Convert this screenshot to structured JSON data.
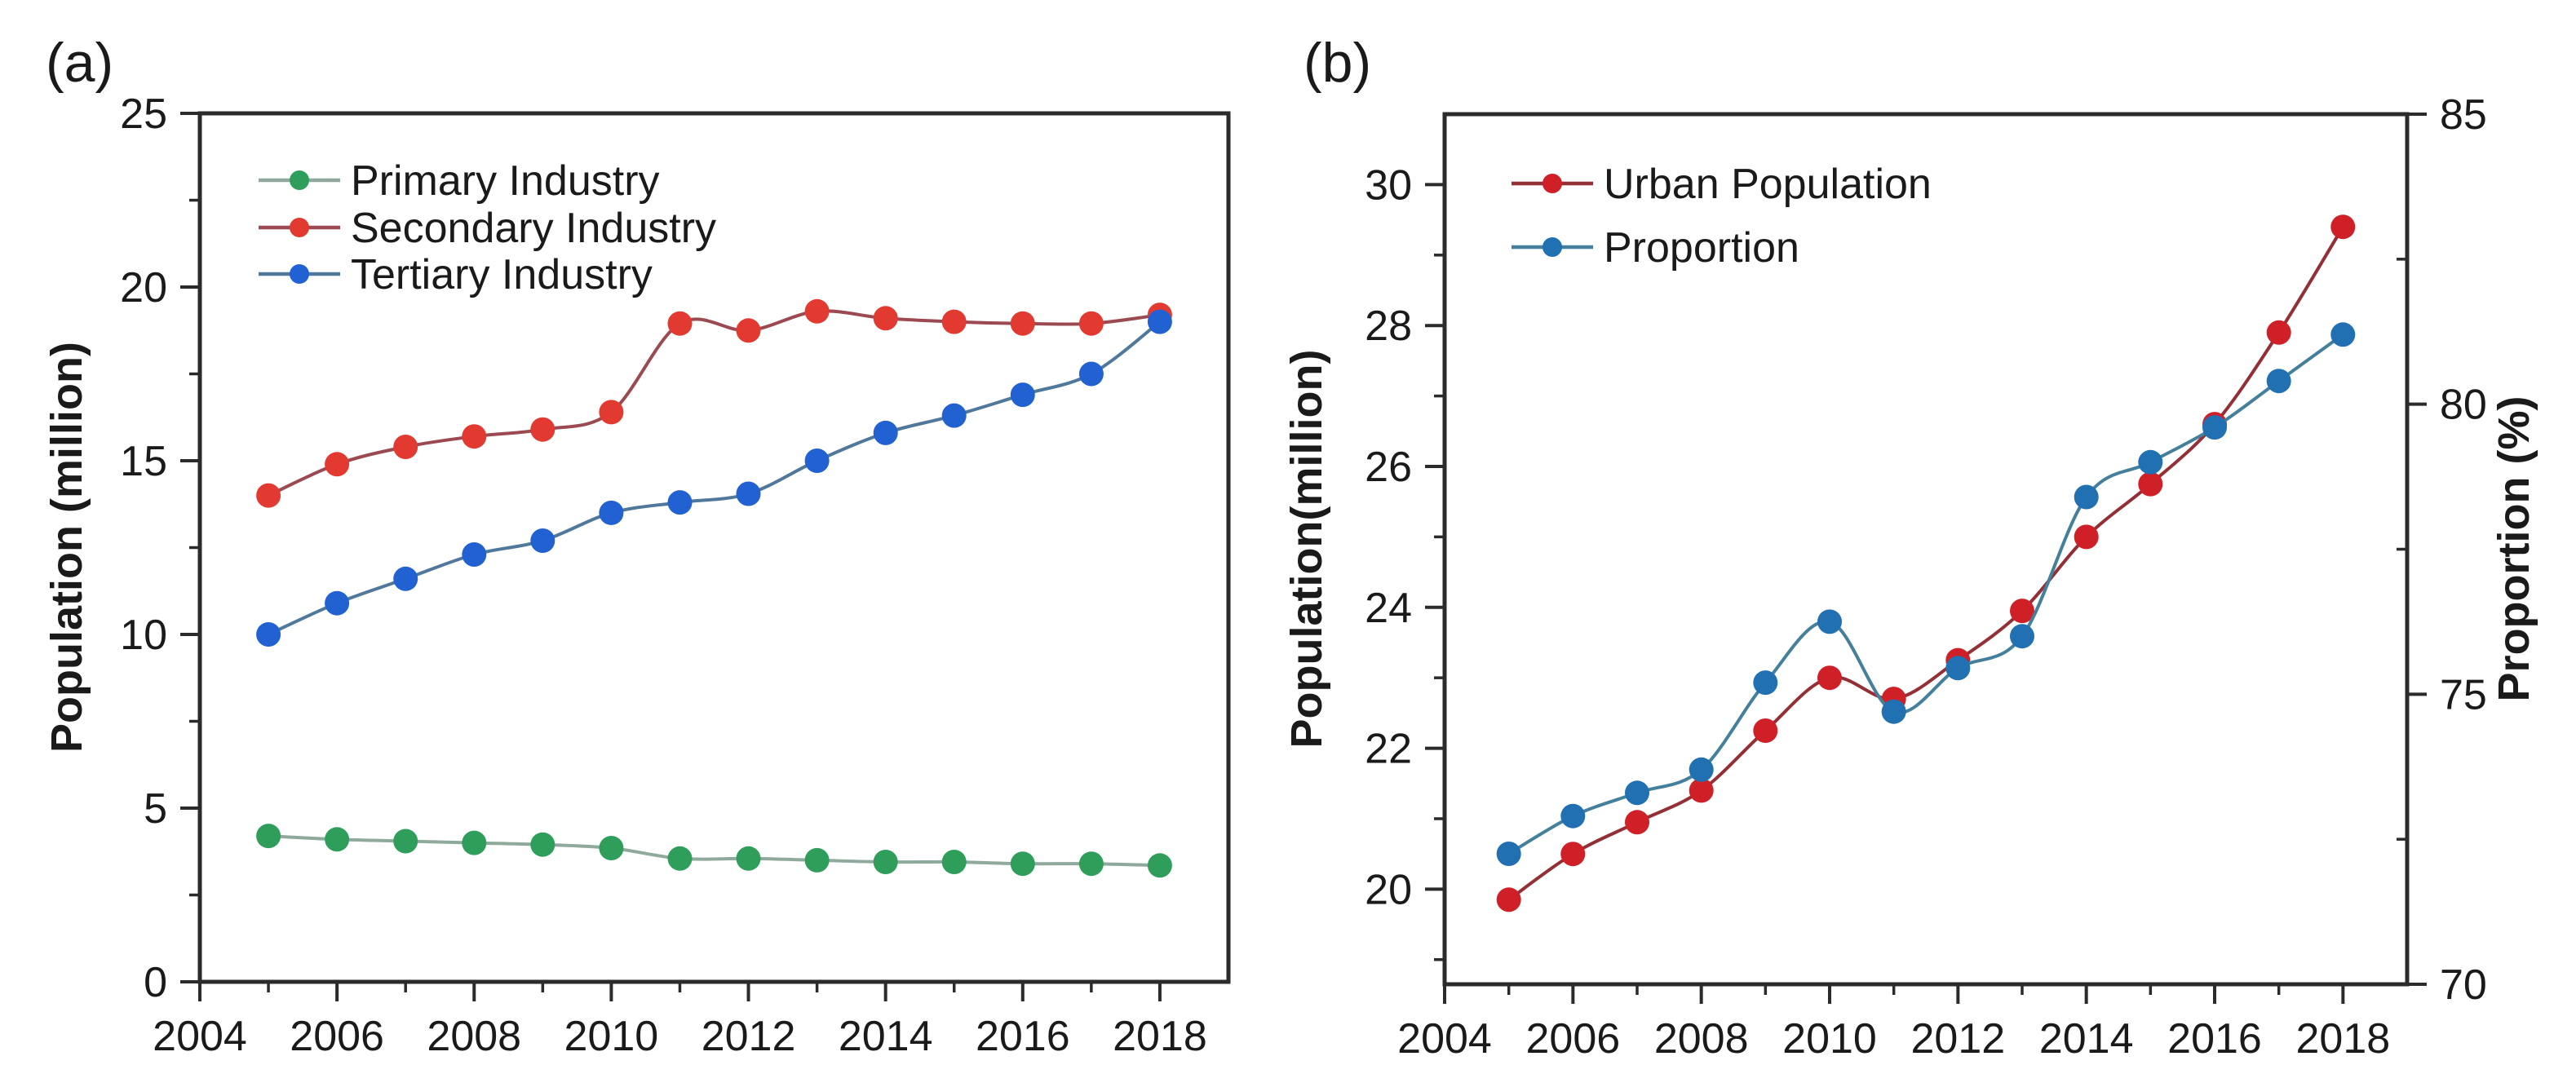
{
  "figure": {
    "background": "#ffffff",
    "axis_color": "#2b2b2b",
    "text_color": "#1a1a1a"
  },
  "chart_data": [
    {
      "type": "line",
      "panel": "(a)",
      "ylabel": "Population (million)",
      "xlabel": "",
      "x": [
        2005,
        2006,
        2007,
        2008,
        2009,
        2010,
        2011,
        2012,
        2013,
        2014,
        2015,
        2016,
        2017,
        2018
      ],
      "series": [
        {
          "name": "Primary Industry",
          "values": [
            4.2,
            4.1,
            4.05,
            4.0,
            3.95,
            3.85,
            3.55,
            3.55,
            3.5,
            3.45,
            3.45,
            3.4,
            3.4,
            3.35
          ],
          "marker_color": "#2f9e5b",
          "line_color": "#8fa99c"
        },
        {
          "name": "Secondary Industry",
          "values": [
            14.0,
            14.9,
            15.4,
            15.7,
            15.9,
            16.4,
            18.95,
            18.75,
            19.3,
            19.1,
            19.0,
            18.95,
            18.95,
            19.2
          ],
          "marker_color": "#e23a31",
          "line_color": "#9c4a51"
        },
        {
          "name": "Tertiary Industry",
          "values": [
            10.0,
            10.9,
            11.6,
            12.3,
            12.7,
            13.5,
            13.8,
            14.05,
            15.0,
            15.8,
            16.3,
            16.9,
            17.5,
            19.0
          ],
          "marker_color": "#2161d1",
          "line_color": "#50789b"
        }
      ],
      "xlim": [
        2004,
        2019
      ],
      "ylim": [
        0,
        25
      ],
      "yticks": [
        0,
        5,
        10,
        15,
        20,
        25
      ],
      "yticks_minor": [
        2.5,
        7.5,
        12.5,
        17.5,
        22.5
      ],
      "xticks": [
        2004,
        2006,
        2008,
        2010,
        2012,
        2014,
        2016,
        2018
      ],
      "xticks_minor": [
        2005,
        2007,
        2009,
        2011,
        2013,
        2015,
        2017
      ],
      "grid": false,
      "legend_position": "upper-left-inside"
    },
    {
      "type": "line-dual-axis",
      "panel": "(b)",
      "ylabel_left": "Population(million)",
      "ylabel_right": "Proportion (%)",
      "xlabel": "",
      "x": [
        2005,
        2006,
        2007,
        2008,
        2009,
        2010,
        2011,
        2012,
        2013,
        2014,
        2015,
        2016,
        2017,
        2018
      ],
      "series": [
        {
          "name": "Urban Population",
          "axis": "left",
          "values": [
            19.85,
            20.5,
            20.95,
            21.4,
            22.25,
            23.0,
            22.7,
            23.25,
            23.95,
            25.0,
            25.75,
            26.6,
            27.9,
            29.4
          ],
          "marker_color": "#cf2027",
          "line_color": "#942f36"
        },
        {
          "name": "Proportion",
          "axis": "right",
          "values": [
            72.25,
            72.9,
            73.3,
            73.7,
            75.2,
            76.25,
            74.7,
            75.45,
            76.0,
            78.4,
            79.0,
            79.6,
            80.4,
            81.2
          ],
          "marker_color": "#2070b2",
          "line_color": "#44809b"
        }
      ],
      "xlim": [
        2004,
        2019
      ],
      "ylim_left": [
        18.65,
        31.0
      ],
      "ylim_right": [
        70,
        85
      ],
      "yticks_left": [
        20,
        22,
        24,
        26,
        28,
        30
      ],
      "yticks_left_minor": [
        19,
        21,
        23,
        25,
        27,
        29
      ],
      "yticks_right": [
        70,
        75,
        80,
        85
      ],
      "yticks_right_minor": [
        72.5,
        77.5,
        82.5
      ],
      "xticks": [
        2004,
        2006,
        2008,
        2010,
        2012,
        2014,
        2016,
        2018
      ],
      "xticks_minor": [
        2005,
        2007,
        2009,
        2011,
        2013,
        2015,
        2017
      ],
      "grid": false,
      "legend_position": "upper-left-inside"
    }
  ]
}
